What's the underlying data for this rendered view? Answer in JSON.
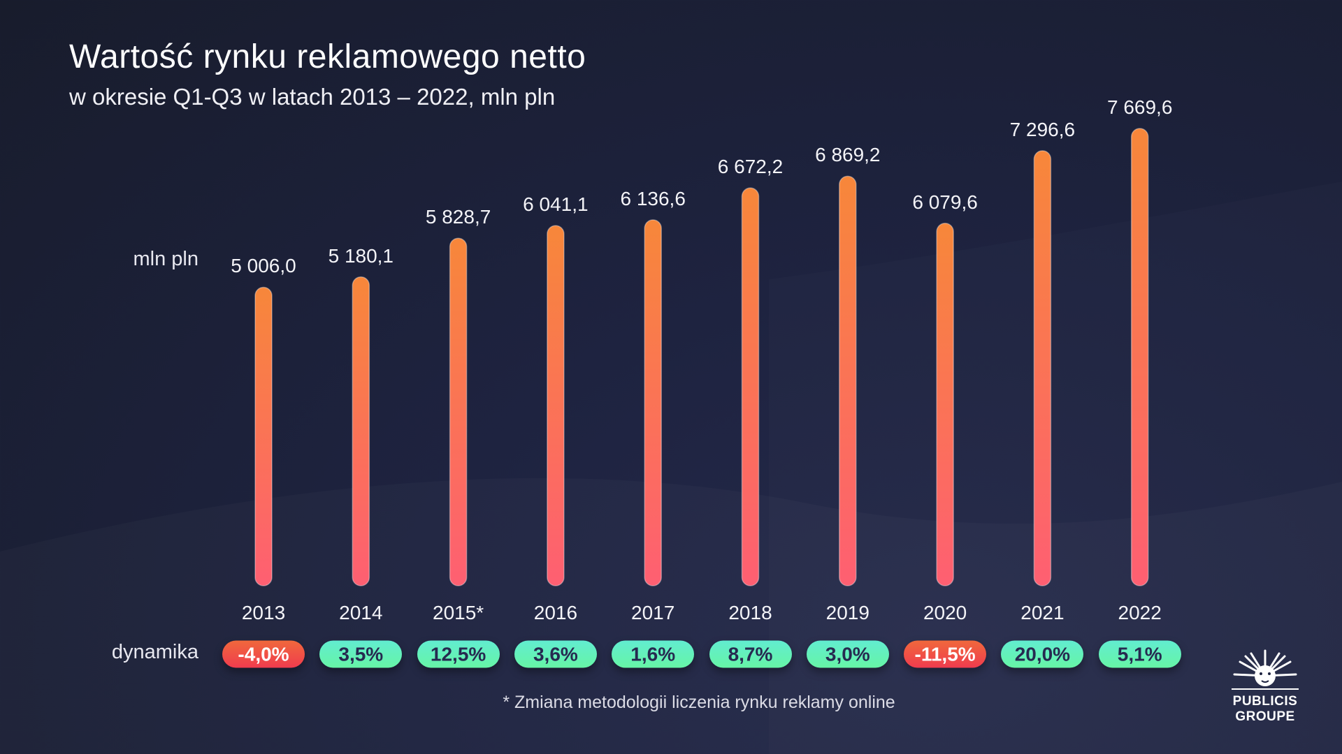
{
  "title": "Wartość rynku reklamowego netto",
  "subtitle": "w okresie Q1-Q3 w latach 2013 – 2022, mln pln",
  "unit_label": "mln pln",
  "dynamics_label": "dynamika",
  "footnote": "* Zmiana metodologii liczenia rynku reklamy online",
  "logo": {
    "line1": "PUBLICIS",
    "line2": "GROUPE"
  },
  "colors": {
    "bar_top": "#f7873a",
    "bar_bottom": "#fe5f72",
    "positive": "#64f0bc",
    "negative": "#f04a45"
  },
  "chart_data": {
    "type": "bar",
    "title": "Wartość rynku reklamowego netto",
    "ylabel": "mln pln",
    "ylim": [
      0,
      7669.6
    ],
    "grid": false,
    "categories": [
      "2013",
      "2014",
      "2015*",
      "2016",
      "2017",
      "2018",
      "2019",
      "2020",
      "2021",
      "2022"
    ],
    "values": [
      5006.0,
      5180.1,
      5828.7,
      6041.1,
      6136.6,
      6672.2,
      6869.2,
      6079.6,
      7296.6,
      7669.6
    ],
    "value_labels": [
      "5 006,0",
      "5 180,1",
      "5 828,7",
      "6 041,1",
      "6 136,6",
      "6 672,2",
      "6 869,2",
      "6 079,6",
      "7 296,6",
      "7 669,6"
    ],
    "dynamics": [
      -4.0,
      3.5,
      12.5,
      3.6,
      1.6,
      8.7,
      3.0,
      -11.5,
      20.0,
      5.1
    ],
    "dynamics_labels": [
      "-4,0%",
      "3,5%",
      "12,5%",
      "3,6%",
      "1,6%",
      "8,7%",
      "3,0%",
      "-11,5%",
      "20,0%",
      "5,1%"
    ]
  }
}
